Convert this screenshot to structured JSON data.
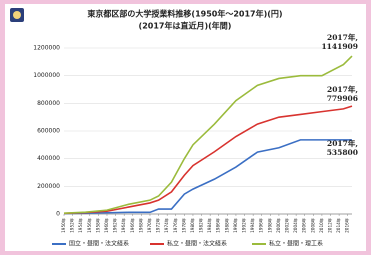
{
  "chart_data": {
    "type": "line",
    "title": "東京都区部の大学授業料推移(1950年～2017年)(円)",
    "subtitle": "(2017年は直近月)(年間)",
    "x": [
      1950,
      1955,
      1960,
      1965,
      1970,
      1972,
      1975,
      1978,
      1980,
      1985,
      1990,
      1995,
      2000,
      2005,
      2010,
      2015,
      2017
    ],
    "xlim": [
      1950,
      2017
    ],
    "xticks": [
      {
        "value": 1950,
        "label": "1950年"
      },
      {
        "value": 1952,
        "label": "1952年"
      },
      {
        "value": 1954,
        "label": "1954年"
      },
      {
        "value": 1956,
        "label": "1956年"
      },
      {
        "value": 1958,
        "label": "1958年"
      },
      {
        "value": 1960,
        "label": "1960年"
      },
      {
        "value": 1962,
        "label": "1962年"
      },
      {
        "value": 1964,
        "label": "1964年"
      },
      {
        "value": 1966,
        "label": "1966年"
      },
      {
        "value": 1968,
        "label": "1968年"
      },
      {
        "value": 1970,
        "label": "1970年"
      },
      {
        "value": 1972,
        "label": "1972年"
      },
      {
        "value": 1974,
        "label": "1974年"
      },
      {
        "value": 1976,
        "label": "1976年"
      },
      {
        "value": 1978,
        "label": "1978年"
      },
      {
        "value": 1980,
        "label": "1980年"
      },
      {
        "value": 1982,
        "label": "1982年"
      },
      {
        "value": 1984,
        "label": "1984年"
      },
      {
        "value": 1986,
        "label": "1986年"
      },
      {
        "value": 1988,
        "label": "1988年"
      },
      {
        "value": 1990,
        "label": "1990年"
      },
      {
        "value": 1992,
        "label": "1992年"
      },
      {
        "value": 1994,
        "label": "1994年"
      },
      {
        "value": 1996,
        "label": "1996年"
      },
      {
        "value": 1998,
        "label": "1998年"
      },
      {
        "value": 2000,
        "label": "2000年"
      },
      {
        "value": 2002,
        "label": "2002年"
      },
      {
        "value": 2004,
        "label": "2004年"
      },
      {
        "value": 2006,
        "label": "2006年"
      },
      {
        "value": 2008,
        "label": "2008年"
      },
      {
        "value": 2010,
        "label": "2010年"
      },
      {
        "value": 2012,
        "label": "2012年"
      },
      {
        "value": 2014,
        "label": "2014年"
      },
      {
        "value": 2016,
        "label": "2016年"
      }
    ],
    "ylim": [
      0,
      1200000
    ],
    "yticks": [
      0,
      200000,
      400000,
      600000,
      800000,
      1000000,
      1200000
    ],
    "series": [
      {
        "name": "国立・昼間・法文経系",
        "color": "#3b6fc4",
        "values": [
          3600,
          6000,
          9000,
          12000,
          12000,
          36000,
          36000,
          144000,
          180000,
          252000,
          339600,
          447600,
          478800,
          535800,
          535800,
          535800,
          535800
        ]
      },
      {
        "name": "私立・昼間・法文経系",
        "color": "#d8332f",
        "values": [
          5000,
          10000,
          20000,
          50000,
          80000,
          100000,
          160000,
          280000,
          350000,
          450000,
          560000,
          650000,
          700000,
          720000,
          740000,
          760000,
          779906
        ]
      },
      {
        "name": "私立・昼間・理工系",
        "color": "#9bbb3c",
        "values": [
          6000,
          13000,
          28000,
          70000,
          100000,
          130000,
          230000,
          400000,
          500000,
          650000,
          820000,
          930000,
          980000,
          1000000,
          1000000,
          1080000,
          1141909
        ]
      }
    ],
    "annotations": [
      {
        "lines": [
          "2017年,",
          "1141909"
        ]
      },
      {
        "lines": [
          "2017年,",
          "779906"
        ]
      },
      {
        "lines": [
          "2017年,",
          "535800"
        ]
      }
    ],
    "legend": "bottom"
  }
}
